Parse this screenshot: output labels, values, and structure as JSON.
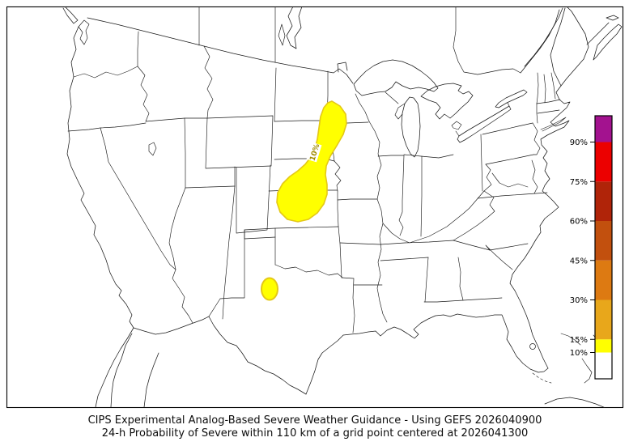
{
  "title": {
    "line1": "CIPS Experimental Analog-Based Severe Weather Guidance - Using GEFS 2026040900",
    "line2": "24-h Probability of Severe within 110 km of a grid point centered at 2026041300"
  },
  "chart_data": {
    "type": "map-contour",
    "region": "CONUS with southern Canada, northern Mexico, Cuba and Bahamas coastlines",
    "model": "GEFS",
    "init_time": "2026040900",
    "valid_time": "2026041300",
    "variable": "24-h Probability of Severe within 110 km of a grid point",
    "contour_label": "10%",
    "areas": [
      {
        "name": "central-plains-corridor",
        "level_pct": 10,
        "fill": "#FFFF00",
        "desc": "Elongated SW-NE swath from north-central Kansas across eastern Nebraska into far southwest Minnesota"
      },
      {
        "name": "central-texas-spot",
        "level_pct": 10,
        "fill": "#FFFF00",
        "desc": "Small oval over central Texas"
      }
    ],
    "colorbar": {
      "orientation": "vertical",
      "ticks": [
        "10%",
        "15%",
        "30%",
        "45%",
        "60%",
        "75%",
        "90%"
      ],
      "tick_values": [
        10,
        15,
        30,
        45,
        60,
        75,
        90
      ],
      "range": [
        0,
        100
      ],
      "segments": [
        {
          "from": 0,
          "to": 10,
          "color": "#FFFFFF"
        },
        {
          "from": 10,
          "to": 15,
          "color": "#FFFF00"
        },
        {
          "from": 15,
          "to": 30,
          "color": "#E8A71B"
        },
        {
          "from": 30,
          "to": 45,
          "color": "#DD7A12"
        },
        {
          "from": 45,
          "to": 60,
          "color": "#C2500E"
        },
        {
          "from": 60,
          "to": 75,
          "color": "#B02409"
        },
        {
          "from": 75,
          "to": 90,
          "color": "#EC0000"
        },
        {
          "from": 90,
          "to": 100,
          "color": "#A3128F"
        }
      ]
    }
  }
}
